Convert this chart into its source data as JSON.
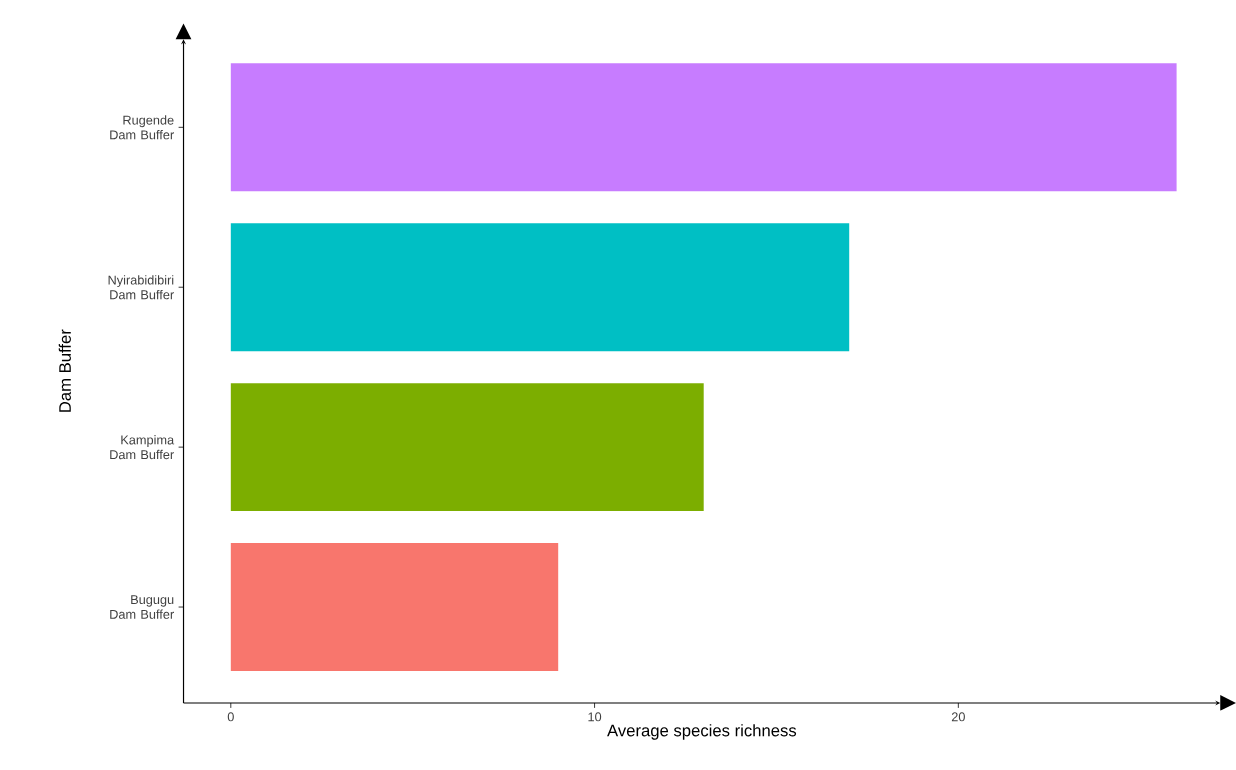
{
  "chart_data": {
    "type": "bar",
    "orientation": "horizontal",
    "xlabel": "Average species richness",
    "ylabel": "Dam Buffer",
    "categories": [
      "Rugende Dam Buffer",
      "Nyirabidibiri Dam Buffer",
      "Kampima Dam Buffer",
      "Bugugu Dam Buffer"
    ],
    "values": [
      26,
      17,
      13,
      9
    ],
    "colors": [
      "#c77cff",
      "#00bfc4",
      "#7cae00",
      "#f8766d"
    ],
    "xlim": [
      -1.3,
      27.2
    ],
    "xticks": [
      0,
      10,
      20
    ],
    "grid": false
  }
}
